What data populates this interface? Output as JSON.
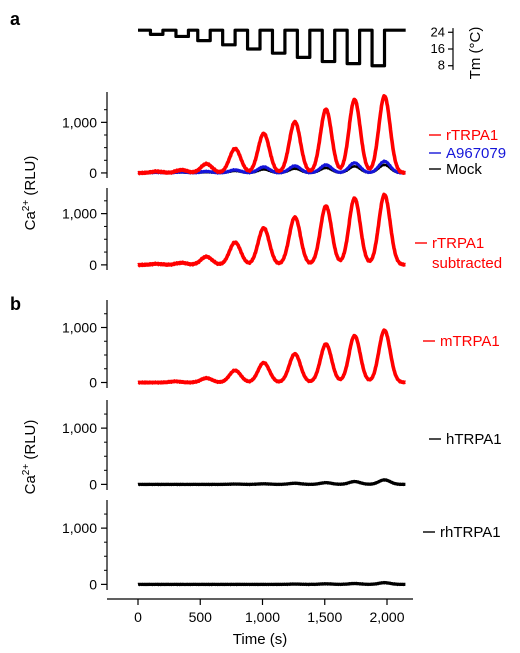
{
  "figure": {
    "panel_labels": [
      "a",
      "b"
    ],
    "time_label": "Time (s)",
    "time_ticks": [
      0,
      500,
      1000,
      1500,
      2000
    ],
    "time_tick_labels": [
      "0",
      "500",
      "1,000",
      "1,500",
      "2,000"
    ],
    "ca_label": "Ca",
    "ca_label_sup": "2+",
    "ca_label_unit": " (RLU)",
    "temp_label": "Tm (°C)",
    "temp_ticks": [
      8,
      16,
      24
    ],
    "temp_tick_labels": [
      "8",
      "16",
      "24"
    ],
    "y_tick_labels": [
      "0",
      "1,000"
    ]
  },
  "colors": {
    "red": "#ff0000",
    "blue": "#1515d9",
    "black": "#000000"
  },
  "chart_data": [
    {
      "type": "line",
      "panel": "a",
      "ylabel": "Tm (°C)",
      "ylim": [
        5,
        27
      ],
      "cycles": {
        "start": [
          100,
          305,
          480,
          680,
          880,
          1080,
          1280,
          1480,
          1680,
          1880
        ],
        "low_temp": [
          23,
          22,
          20,
          18,
          16,
          14,
          12,
          10,
          9,
          8
        ],
        "dwell": 100
      },
      "baseline_temp": 25,
      "series": [
        {
          "name": "",
          "color": "#000000"
        }
      ]
    },
    {
      "type": "line",
      "panel": "a",
      "ylabel": "Ca2+ (RLU)",
      "ylim": [
        -100,
        1600
      ],
      "peaks": {
        "x": [
          150,
          350,
          550,
          780,
          1010,
          1260,
          1510,
          1740,
          1980
        ],
        "rtrpa1": [
          30,
          60,
          180,
          480,
          780,
          1010,
          1260,
          1450,
          1520
        ],
        "a967079": [
          10,
          20,
          30,
          60,
          120,
          140,
          160,
          200,
          230
        ],
        "mock": [
          5,
          10,
          15,
          40,
          70,
          85,
          100,
          130,
          160
        ]
      },
      "series": [
        {
          "name": "rTRPA1",
          "color": "#ff0000"
        },
        {
          "name": "A967079",
          "color": "#1515d9"
        },
        {
          "name": "Mock",
          "color": "#000000"
        }
      ]
    },
    {
      "type": "line",
      "panel": "a",
      "ylabel": "Ca2+ (RLU)",
      "ylim": [
        -100,
        1500
      ],
      "peaks": {
        "x": [
          150,
          350,
          550,
          780,
          1010,
          1260,
          1510,
          1740,
          1980
        ],
        "values": [
          20,
          40,
          160,
          440,
          720,
          930,
          1150,
          1300,
          1370
        ]
      },
      "series": [
        {
          "name": "rTRPA1\nsubtracted",
          "color": "#ff0000"
        }
      ]
    },
    {
      "type": "line",
      "panel": "b",
      "ylabel": "Ca2+ (RLU)",
      "ylim": [
        -100,
        1500
      ],
      "peaks": {
        "x": [
          300,
          550,
          780,
          1010,
          1260,
          1510,
          1740,
          1980
        ],
        "values": [
          20,
          80,
          220,
          360,
          520,
          700,
          850,
          950
        ]
      },
      "series": [
        {
          "name": "mTRPA1",
          "color": "#ff0000"
        }
      ]
    },
    {
      "type": "line",
      "panel": "b",
      "ylabel": "Ca2+ (RLU)",
      "ylim": [
        -100,
        1500
      ],
      "peaks": {
        "x": [
          780,
          1010,
          1260,
          1510,
          1740,
          1980
        ],
        "values": [
          5,
          10,
          20,
          30,
          50,
          80
        ]
      },
      "series": [
        {
          "name": "hTRPA1",
          "color": "#000000"
        }
      ]
    },
    {
      "type": "line",
      "panel": "b",
      "ylabel": "Ca2+ (RLU)",
      "ylim": [
        -100,
        1500
      ],
      "peaks": {
        "x": [
          1260,
          1510,
          1740,
          1980
        ],
        "values": [
          5,
          10,
          15,
          30
        ]
      },
      "series": [
        {
          "name": "rhTRPA1",
          "color": "#000000"
        }
      ]
    }
  ]
}
